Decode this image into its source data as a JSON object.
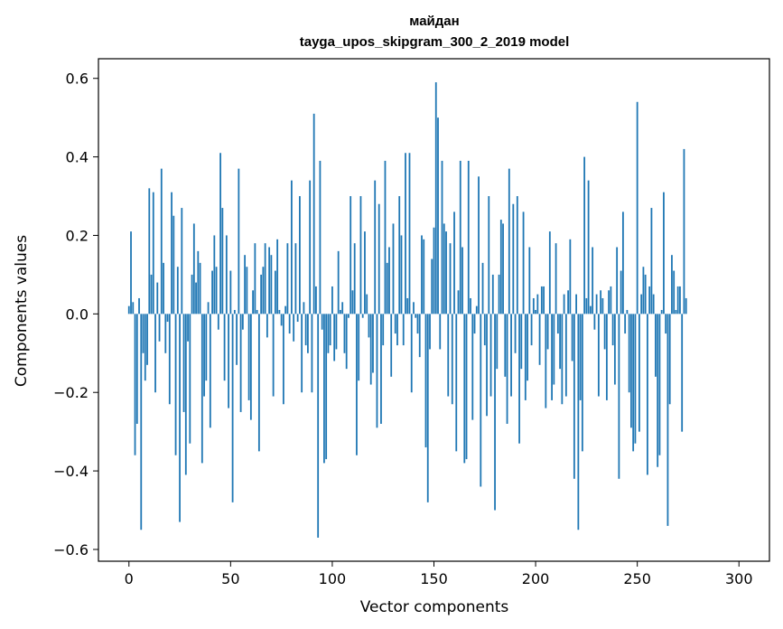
{
  "chart_data": {
    "type": "bar",
    "title": "майдан",
    "subtitle": "tayga_upos_skipgram_300_2_2019 model",
    "xlabel": "Vector components",
    "ylabel": "Components values",
    "xlim": [
      -15,
      315
    ],
    "ylim": [
      -0.63,
      0.65
    ],
    "xticks": [
      0,
      50,
      100,
      150,
      200,
      250,
      300
    ],
    "yticks": [
      -0.6,
      -0.4,
      -0.2,
      0.0,
      0.2,
      0.4,
      0.6
    ],
    "ytick_labels": [
      "−0.6",
      "−0.4",
      "−0.2",
      "0.0",
      "0.2",
      "0.4",
      "0.6"
    ],
    "bar_color": "#1f77b4",
    "grid": false,
    "values": [
      0.02,
      0.21,
      0.03,
      -0.36,
      -0.28,
      0.04,
      -0.55,
      -0.1,
      -0.17,
      -0.13,
      0.32,
      0.1,
      0.31,
      -0.2,
      0.08,
      -0.07,
      0.37,
      0.13,
      -0.1,
      -0.02,
      -0.23,
      0.31,
      0.25,
      -0.36,
      0.12,
      -0.53,
      0.27,
      -0.25,
      -0.41,
      -0.07,
      -0.33,
      0.1,
      0.23,
      0.08,
      0.16,
      0.13,
      -0.38,
      -0.21,
      -0.17,
      0.03,
      -0.29,
      0.11,
      0.2,
      0.12,
      -0.04,
      0.41,
      0.27,
      -0.17,
      0.2,
      -0.24,
      0.11,
      -0.48,
      0.01,
      -0.13,
      0.37,
      -0.25,
      -0.04,
      0.15,
      0.12,
      -0.22,
      -0.27,
      0.06,
      0.18,
      0.01,
      -0.35,
      0.1,
      0.12,
      0.18,
      -0.06,
      0.17,
      0.15,
      -0.21,
      0.11,
      0.19,
      0.01,
      -0.03,
      -0.23,
      0.02,
      0.18,
      -0.05,
      0.34,
      -0.07,
      0.18,
      -0.02,
      0.3,
      -0.2,
      0.03,
      -0.08,
      -0.1,
      0.34,
      -0.2,
      0.51,
      0.07,
      -0.57,
      0.39,
      -0.04,
      -0.38,
      -0.37,
      -0.1,
      -0.08,
      0.07,
      -0.12,
      -0.09,
      0.16,
      0.01,
      0.03,
      -0.1,
      -0.14,
      -0.01,
      0.3,
      0.06,
      0.18,
      -0.36,
      -0.17,
      0.3,
      -0.01,
      0.21,
      0.05,
      -0.06,
      -0.18,
      -0.15,
      0.34,
      -0.29,
      0.28,
      -0.28,
      -0.08,
      0.39,
      0.13,
      0.17,
      -0.16,
      0.23,
      -0.05,
      -0.08,
      0.3,
      0.2,
      -0.08,
      0.41,
      0.04,
      0.41,
      -0.2,
      0.03,
      -0.01,
      -0.05,
      -0.11,
      0.2,
      0.19,
      -0.34,
      -0.48,
      -0.09,
      0.14,
      0.22,
      0.59,
      0.5,
      -0.09,
      0.39,
      0.23,
      0.21,
      -0.21,
      0.18,
      -0.23,
      0.26,
      -0.35,
      0.06,
      0.39,
      0.17,
      -0.38,
      -0.37,
      0.39,
      0.04,
      -0.27,
      -0.05,
      0.02,
      0.35,
      -0.44,
      0.13,
      -0.08,
      -0.26,
      0.3,
      -0.21,
      0.1,
      -0.5,
      -0.14,
      0.1,
      0.24,
      0.23,
      -0.16,
      -0.28,
      0.37,
      -0.21,
      0.28,
      -0.1,
      0.3,
      -0.33,
      -0.14,
      0.26,
      -0.22,
      -0.17,
      0.17,
      -0.08,
      0.04,
      0.01,
      0.05,
      -0.13,
      0.07,
      0.07,
      -0.24,
      -0.09,
      0.21,
      -0.22,
      -0.18,
      0.18,
      -0.05,
      -0.14,
      -0.23,
      0.05,
      -0.21,
      0.06,
      0.19,
      -0.12,
      -0.42,
      0.05,
      -0.55,
      -0.22,
      -0.35,
      0.4,
      0.04,
      0.34,
      0.02,
      0.17,
      -0.04,
      0.05,
      -0.21,
      0.06,
      0.04,
      -0.09,
      -0.22,
      0.06,
      0.07,
      -0.08,
      -0.18,
      0.17,
      -0.42,
      0.11,
      0.26,
      -0.05,
      0.01,
      -0.2,
      -0.29,
      -0.35,
      -0.33,
      0.54,
      -0.3,
      0.05,
      0.12,
      0.1,
      -0.41,
      0.07,
      0.27,
      0.05,
      -0.16,
      -0.39,
      -0.36,
      0.01,
      0.31,
      -0.05,
      -0.54,
      -0.23,
      0.15,
      0.11,
      0.01,
      0.07,
      0.07,
      -0.3,
      0.42,
      0.04
    ]
  }
}
